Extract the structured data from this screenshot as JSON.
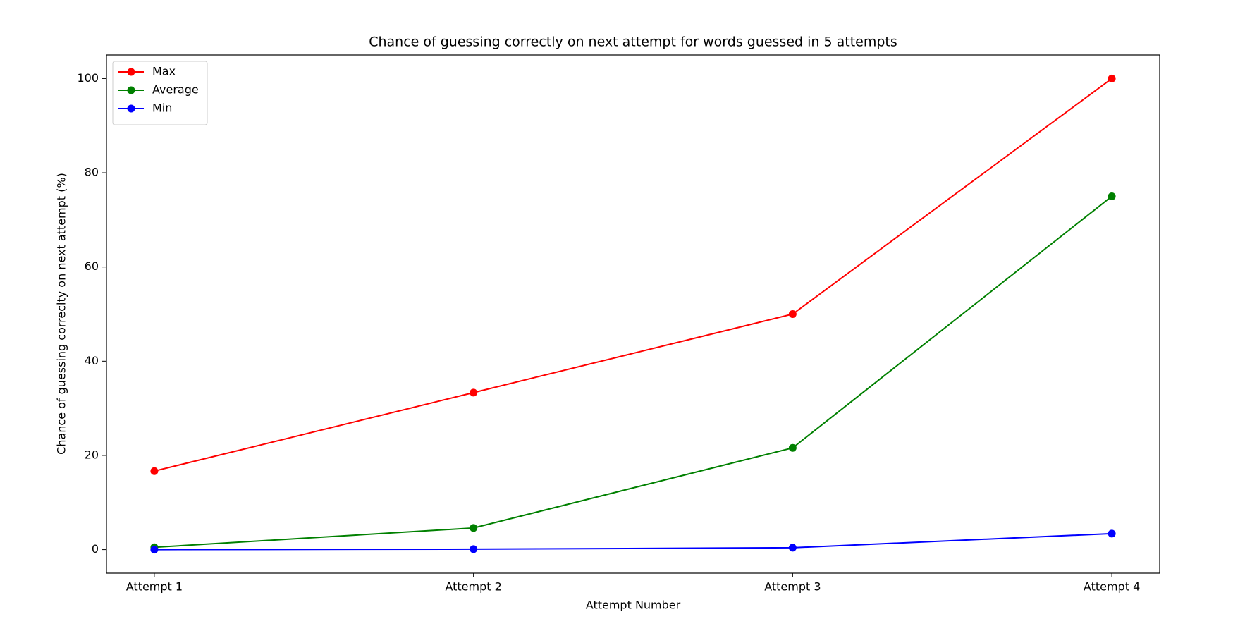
{
  "chart_data": {
    "type": "line",
    "title": "Chance of guessing correctly on next attempt for words guessed in 5 attempts",
    "x_label": "Attempt Number",
    "y_label": "Chance of guessing correclty on next attempt (%)",
    "categories": [
      "Attempt 1",
      "Attempt 2",
      "Attempt 3",
      "Attempt 4"
    ],
    "series": [
      {
        "name": "Max",
        "color": "#ff0000",
        "values": [
          16.67,
          33.33,
          50,
          100
        ]
      },
      {
        "name": "Average",
        "color": "#008000",
        "values": [
          0.5,
          4.6,
          21.6,
          75
        ]
      },
      {
        "name": "Min",
        "color": "#0000ff",
        "values": [
          0,
          0.1,
          0.4,
          3.4
        ]
      }
    ],
    "ylim": [
      -5,
      105
    ],
    "yticks": [
      0,
      20,
      40,
      60,
      80,
      100
    ],
    "legend": "upper left"
  }
}
